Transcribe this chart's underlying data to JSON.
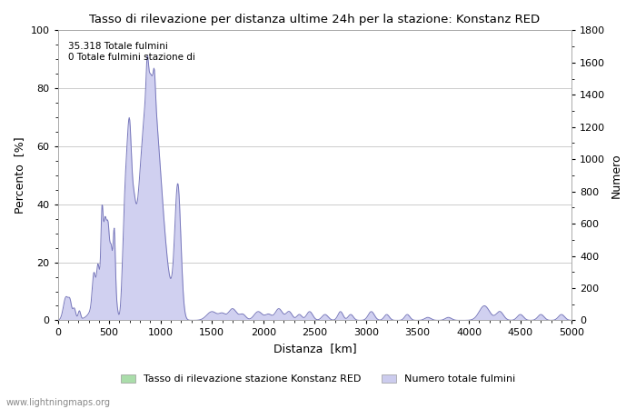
{
  "title": "Tasso di rilevazione per distanza ultime 24h per la stazione: Konstanz RED",
  "xlabel": "Distanza  [km]",
  "ylabel_left": "Percento  [%]",
  "ylabel_right": "Numero",
  "annotation_line1": "35.318 Totale fulmini",
  "annotation_line2": "0 Totale fulmini stazione di",
  "legend_label1": "Tasso di rilevazione stazione Konstanz RED",
  "legend_label2": "Numero totale fulmini",
  "legend_color1": "#aaddaa",
  "legend_color2": "#ccccee",
  "watermark": "www.lightningmaps.org",
  "xlim": [
    0,
    5000
  ],
  "ylim_left": [
    0,
    100
  ],
  "ylim_right": [
    0,
    1800
  ],
  "yticks_left": [
    0,
    20,
    40,
    60,
    80,
    100
  ],
  "yticks_right": [
    0,
    200,
    400,
    600,
    800,
    1000,
    1200,
    1400,
    1600,
    1800
  ],
  "xticks": [
    0,
    500,
    1000,
    1500,
    2000,
    2500,
    3000,
    3500,
    4000,
    4500,
    5000
  ],
  "background_color": "#ffffff",
  "grid_color": "#cccccc",
  "line_color": "#7777bb",
  "fill_color": "#d0d0f0"
}
